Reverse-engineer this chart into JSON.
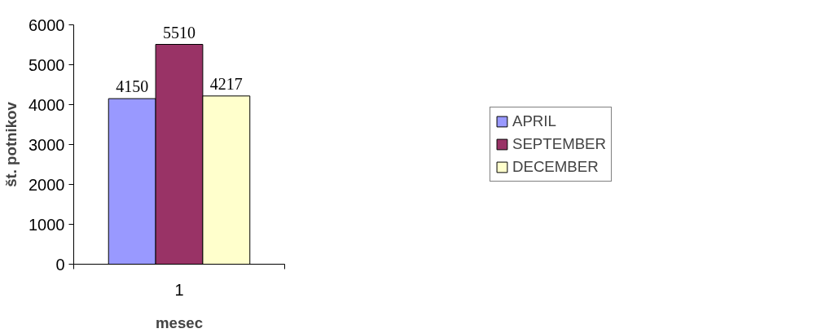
{
  "chart_data": {
    "type": "bar",
    "xlabel": "mesec",
    "ylabel": "št. potnikov",
    "categories": [
      "1"
    ],
    "series": [
      {
        "name": "APRIL",
        "color": "#9999ff",
        "values": [
          4150
        ]
      },
      {
        "name": "SEPTEMBER",
        "color": "#993366",
        "values": [
          5510
        ]
      },
      {
        "name": "DECEMBER",
        "color": "#ffffcc",
        "values": [
          4217
        ]
      }
    ],
    "ylim": [
      0,
      6000
    ],
    "yticks": [
      0,
      1000,
      2000,
      3000,
      4000,
      5000,
      6000
    ],
    "grid": false,
    "legend": "right",
    "data_labels": true
  }
}
